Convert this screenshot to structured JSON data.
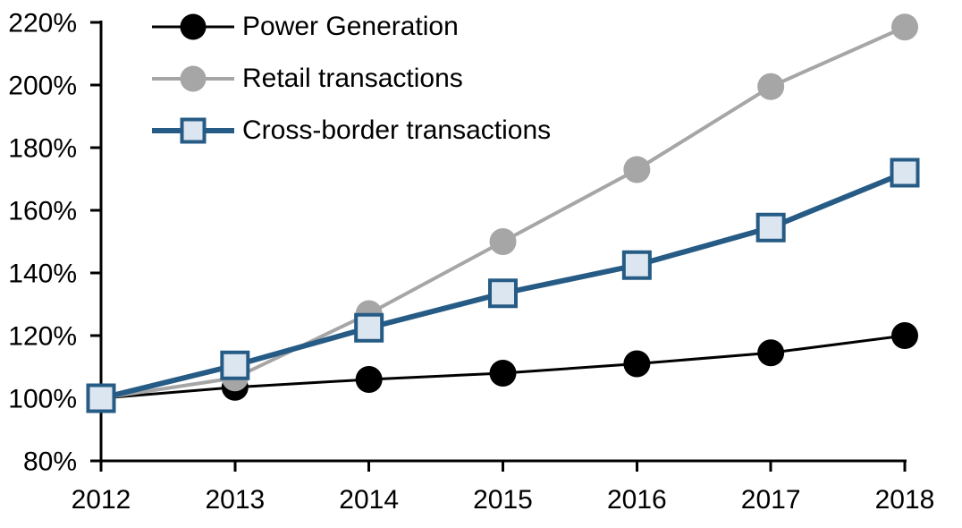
{
  "chart_data": {
    "type": "line",
    "title": "",
    "xlabel": "",
    "ylabel": "",
    "categories": [
      "2012",
      "2013",
      "2014",
      "2015",
      "2016",
      "2017",
      "2018"
    ],
    "series": [
      {
        "name": "Power Generation",
        "color": "#000000",
        "marker": "circle",
        "marker_fill": "#000000",
        "line_width": 3,
        "values": [
          100,
          103.5,
          106,
          108,
          111,
          114.5,
          120
        ]
      },
      {
        "name": "Retail transactions",
        "color": "#A6A6A6",
        "marker": "circle",
        "marker_fill": "#A6A6A6",
        "line_width": 4,
        "values": [
          100,
          106.5,
          127,
          150,
          173,
          199.5,
          218.5
        ]
      },
      {
        "name": "Cross-border transactions",
        "color": "#255B85",
        "marker": "square",
        "marker_fill": "#DCE6F1",
        "line_width": 6,
        "values": [
          100,
          110.5,
          122.5,
          133.5,
          142.5,
          154.5,
          172
        ]
      }
    ],
    "ylim": [
      80,
      220
    ],
    "ytick_step": 20,
    "ytick_labels": [
      "80%",
      "100%",
      "120%",
      "140%",
      "160%",
      "180%",
      "200%",
      "220%"
    ],
    "grid": false,
    "legend_position": "top-left",
    "axis_color": "#000000",
    "background_color": "#FFFFFF"
  }
}
